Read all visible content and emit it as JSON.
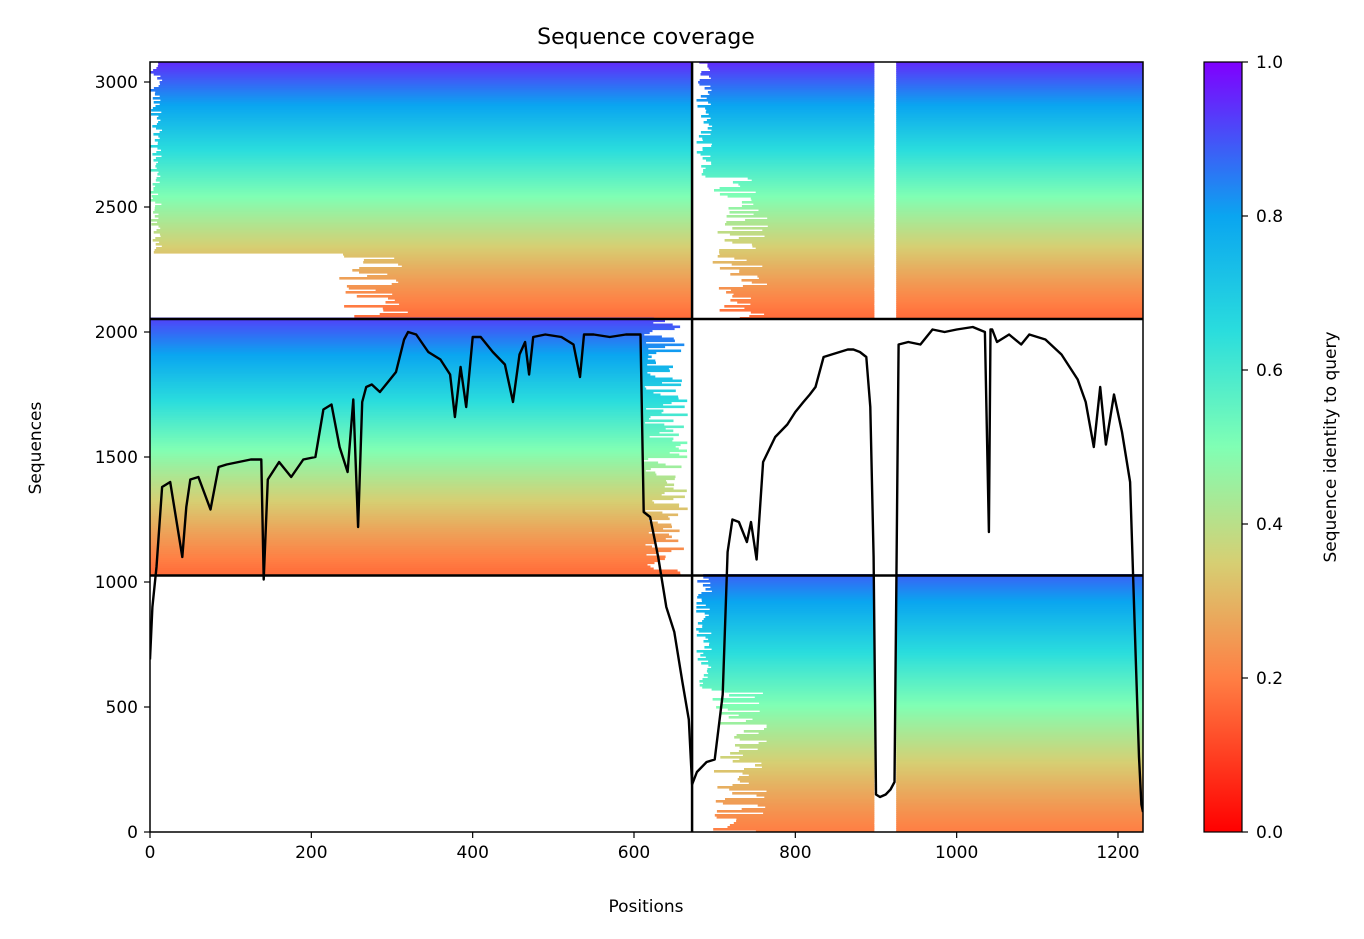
{
  "chart_data": {
    "type": "heatmap",
    "title": "Sequence coverage",
    "xlabel": "Positions",
    "ylabel": "Sequences",
    "xlim": [
      0,
      1231
    ],
    "ylim": [
      0,
      3080
    ],
    "xticks": [
      0,
      200,
      400,
      600,
      800,
      1000,
      1200
    ],
    "yticks": [
      0,
      500,
      1000,
      1500,
      2000,
      2500,
      3000
    ],
    "colorbar": {
      "label": "Sequence identity to query",
      "range": [
        0.0,
        1.0
      ],
      "ticks": [
        0.0,
        0.2,
        0.4,
        0.6,
        0.8,
        1.0
      ],
      "colormap": "rainbow"
    },
    "blocks": [
      {
        "name": "block-chain1-pair",
        "x": [
          0,
          672
        ],
        "y": [
          2052,
          3080
        ],
        "identity_top": 0.95,
        "identity_bottom": 0.17,
        "fill_start_top": 0,
        "fill_start_bottom": 320
      },
      {
        "name": "block-chain2-pair",
        "x": [
          672,
          1231
        ],
        "y": [
          2052,
          3080
        ],
        "identity_top": 0.95,
        "identity_bottom": 0.17,
        "gap_x": [
          898,
          925
        ]
      },
      {
        "name": "block-chain1-single",
        "x": [
          0,
          672
        ],
        "y": [
          1026,
          2052
        ],
        "identity_top": 0.92,
        "identity_bottom": 0.17,
        "fill_end": 612
      },
      {
        "name": "block-chain2-single",
        "x": [
          672,
          1231
        ],
        "y": [
          0,
          1026
        ],
        "identity_top": 0.88,
        "identity_bottom": 0.2,
        "gap_x": [
          898,
          925
        ]
      }
    ],
    "divider_x": 672,
    "divider_y": [
      1026,
      2052
    ],
    "coverage_line": {
      "name": "coverage",
      "color": "#000000",
      "x": [
        0,
        3,
        8,
        15,
        25,
        40,
        45,
        50,
        60,
        75,
        85,
        95,
        110,
        125,
        138,
        141,
        146,
        160,
        175,
        190,
        205,
        215,
        225,
        235,
        245,
        252,
        258,
        263,
        268,
        275,
        285,
        295,
        305,
        315,
        320,
        330,
        345,
        360,
        372,
        378,
        385,
        392,
        400,
        410,
        425,
        440,
        450,
        458,
        465,
        470,
        475,
        490,
        510,
        525,
        533,
        538,
        550,
        570,
        590,
        608,
        612,
        620,
        630,
        640,
        650,
        660,
        668,
        672,
        678,
        690,
        700,
        710,
        716,
        722,
        730,
        740,
        745,
        752,
        760,
        775,
        790,
        800,
        810,
        818,
        825,
        835,
        845,
        855,
        865,
        872,
        880,
        888,
        893,
        897,
        900,
        905,
        912,
        918,
        923,
        928,
        940,
        955,
        970,
        985,
        1000,
        1020,
        1035,
        1040,
        1042,
        1044,
        1050,
        1065,
        1080,
        1090,
        1110,
        1130,
        1150,
        1160,
        1170,
        1178,
        1185,
        1195,
        1205,
        1215,
        1222,
        1226,
        1229,
        1231
      ],
      "y": [
        690,
        900,
        1060,
        1380,
        1400,
        1100,
        1300,
        1410,
        1420,
        1290,
        1460,
        1470,
        1480,
        1490,
        1490,
        1010,
        1410,
        1480,
        1420,
        1490,
        1500,
        1690,
        1710,
        1540,
        1440,
        1730,
        1220,
        1720,
        1780,
        1790,
        1760,
        1800,
        1840,
        1970,
        2000,
        1990,
        1920,
        1890,
        1830,
        1660,
        1860,
        1700,
        1980,
        1980,
        1920,
        1870,
        1720,
        1910,
        1960,
        1830,
        1980,
        1990,
        1980,
        1950,
        1820,
        1990,
        1990,
        1980,
        1990,
        1990,
        1280,
        1260,
        1100,
        900,
        800,
        600,
        450,
        190,
        240,
        280,
        290,
        550,
        1120,
        1250,
        1240,
        1160,
        1240,
        1090,
        1480,
        1580,
        1630,
        1680,
        1720,
        1750,
        1780,
        1900,
        1910,
        1920,
        1930,
        1930,
        1920,
        1900,
        1700,
        1100,
        150,
        140,
        150,
        170,
        200,
        1950,
        1960,
        1950,
        2010,
        2000,
        2010,
        2020,
        2000,
        1200,
        2010,
        2010,
        1960,
        1990,
        1950,
        1990,
        1970,
        1910,
        1810,
        1720,
        1540,
        1780,
        1550,
        1750,
        1600,
        1400,
        700,
        300,
        110,
        80
      ]
    }
  }
}
